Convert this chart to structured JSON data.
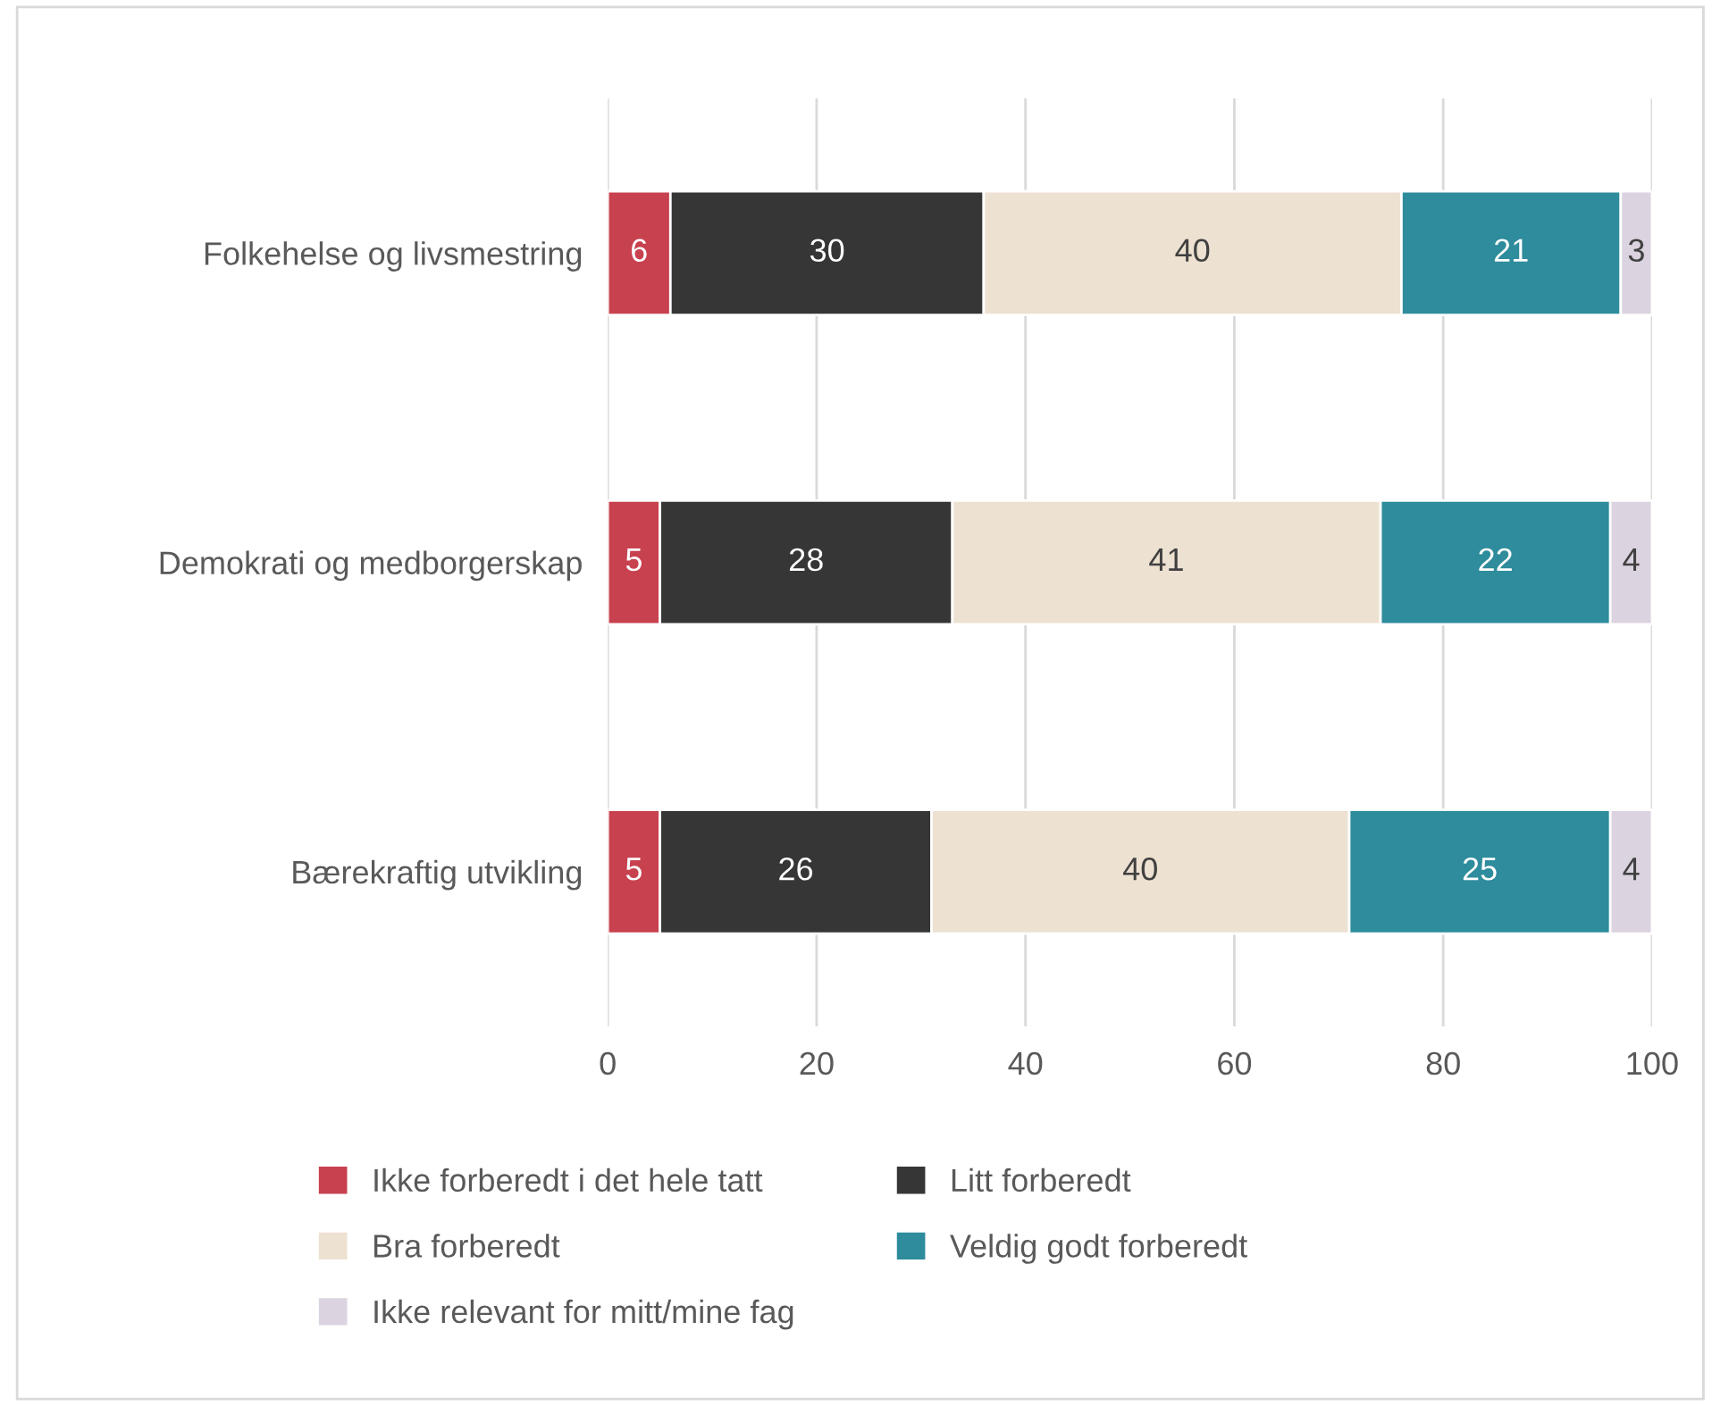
{
  "chart_data": {
    "type": "bar",
    "orientation": "horizontal",
    "stacked": true,
    "categories": [
      "Folkehelse og livsmestring",
      "Demokrati og medborgerskap",
      "Bærekraftig utvikling"
    ],
    "series": [
      {
        "name": "Ikke forberedt i det hele tatt",
        "color": "#c8414f",
        "values": [
          6,
          5,
          5
        ]
      },
      {
        "name": "Litt forberedt",
        "color": "#363636",
        "values": [
          30,
          28,
          26
        ]
      },
      {
        "name": "Bra forberedt",
        "color": "#ede1d1",
        "values": [
          40,
          41,
          40
        ]
      },
      {
        "name": "Veldig godt forberedt",
        "color": "#2e8c9c",
        "values": [
          21,
          22,
          25
        ]
      },
      {
        "name": "Ikke relevant for mitt/mine fag",
        "color": "#dcd3e0",
        "values": [
          3,
          4,
          4
        ]
      }
    ],
    "xlim": [
      0,
      100
    ],
    "xticks": [
      0,
      20,
      40,
      60,
      80,
      100
    ],
    "grid": "x",
    "legend": "bottom",
    "data_labels": true
  }
}
